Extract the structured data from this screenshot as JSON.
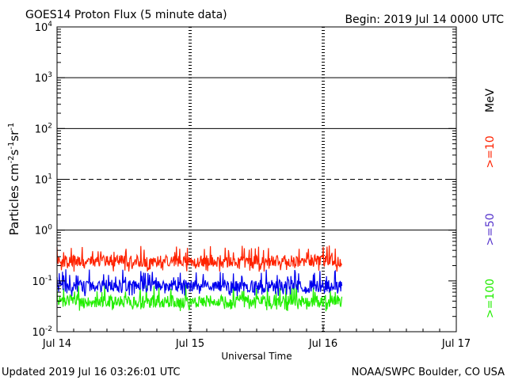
{
  "header": {
    "title": "GOES14 Proton Flux (5 minute data)",
    "begin": "Begin: 2019 Jul 14 0000 UTC"
  },
  "footer": {
    "updated": "Updated 2019 Jul 16 03:26:01 UTC",
    "credit": "NOAA/SWPC Boulder, CO USA"
  },
  "chart_data": {
    "type": "line",
    "title": "GOES14 Proton Flux (5 minute data)",
    "xlabel": "Universal Time",
    "ylabel": "Particles cm⁻²s⁻¹sr⁻¹",
    "ylabel_parts": [
      "Particles cm",
      "-2",
      "s",
      "-1",
      "sr",
      "-1"
    ],
    "y_scale": "log",
    "ylim": [
      0.01,
      10000
    ],
    "yticks": [
      {
        "value": 0.01,
        "base": "10",
        "exp": "-2"
      },
      {
        "value": 0.1,
        "base": "10",
        "exp": "-1"
      },
      {
        "value": 1,
        "base": "10",
        "exp": "0"
      },
      {
        "value": 10,
        "base": "10",
        "exp": "1"
      },
      {
        "value": 100,
        "base": "10",
        "exp": "2"
      },
      {
        "value": 1000,
        "base": "10",
        "exp": "3"
      },
      {
        "value": 10000,
        "base": "10",
        "exp": "4"
      }
    ],
    "x_unit": "days since 2019 Jul 14 0000 UTC",
    "xlim": [
      0,
      3
    ],
    "xticks": [
      {
        "value": 0,
        "label": "Jul 14"
      },
      {
        "value": 1,
        "label": "Jul 15"
      },
      {
        "value": 2,
        "label": "Jul 16"
      },
      {
        "value": 3,
        "label": "Jul 17"
      }
    ],
    "data_end": 2.14,
    "right_axis_label": "MeV",
    "grid": {
      "solid_levels": [
        1,
        100,
        1000
      ],
      "dashed_levels": [
        10
      ],
      "daily_dividers": true
    },
    "series": [
      {
        "name": ">=10",
        "color": "#ff2200",
        "mean": 0.25,
        "min": 0.15,
        "max": 0.5
      },
      {
        "name": ">=50",
        "color": "#0000ee",
        "mean": 0.08,
        "min": 0.05,
        "max": 0.17
      },
      {
        "name": ">=100",
        "color": "#22ee00",
        "mean": 0.04,
        "min": 0.025,
        "max": 0.09
      }
    ]
  }
}
